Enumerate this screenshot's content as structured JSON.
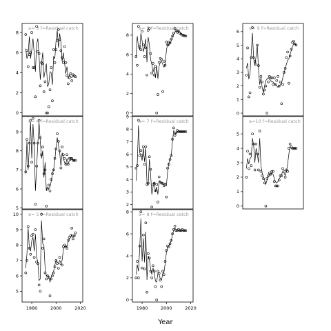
{
  "xlabel": "Year",
  "chart_data": [
    {
      "type": "scatter",
      "strip": "a= 3  f=Residual catch",
      "xlim": [
        1972,
        2022
      ],
      "ylim": [
        -0.3,
        8.9
      ],
      "xticks": [
        1980,
        2000,
        2020
      ],
      "yticks": [
        0,
        2,
        4,
        6,
        8
      ],
      "show_xticks": false,
      "x": [
        1975,
        1976,
        1977,
        1978,
        1979,
        1980,
        1981,
        1982,
        1983,
        1984,
        1985,
        1986,
        1987,
        1988,
        1989,
        1990,
        1991,
        1992,
        1993,
        1994,
        1995,
        1996,
        1997,
        1998,
        1999,
        2000,
        2001,
        2002,
        2003,
        2004,
        2005,
        2006,
        2007,
        2008,
        2009,
        2010,
        2011,
        2012,
        2013,
        2014,
        2015,
        2016
      ],
      "y": [
        7.8,
        6.2,
        4.6,
        5.8,
        6.0,
        8.0,
        4.5,
        4.5,
        1.6,
        8.6,
        6.1,
        5.9,
        2.7,
        5.0,
        4.9,
        2.1,
        3.1,
        0.0,
        0.0,
        0.6,
        2.3,
        4.5,
        1.2,
        6.3,
        5.0,
        6.3,
        7.2,
        8.3,
        7.3,
        6.2,
        5.5,
        5.0,
        6.6,
        5.0,
        3.7,
        2.9,
        3.5,
        3.9,
        3.2,
        3.8,
        3.7,
        3.6
      ],
      "fit": [
        6.4,
        5.4,
        5.8,
        7.6,
        5.4,
        6.3,
        7.4,
        5.9,
        4.1,
        6.8,
        7.4,
        5.7,
        3.3,
        4.8,
        6.0,
        3.5,
        4.2,
        4.9,
        2.6,
        2.9,
        4.1,
        4.0,
        2.8,
        5.6,
        5.4,
        7.2,
        8.2,
        6.5,
        7.9,
        7.0,
        5.1,
        6.0,
        5.0,
        3.9,
        4.6,
        3.4,
        3.8,
        3.6,
        3.5,
        3.7,
        3.6,
        3.6
      ]
    },
    {
      "type": "scatter",
      "strip": "a= 6  f=Residual catch",
      "xlim": [
        1972,
        2022
      ],
      "ylim": [
        -0.3,
        9.2
      ],
      "xticks": [
        1980,
        2000,
        2020
      ],
      "yticks": [
        0,
        2,
        4,
        6,
        8
      ],
      "show_xticks": false,
      "x": [
        1975,
        1976,
        1977,
        1978,
        1979,
        1980,
        1981,
        1982,
        1983,
        1984,
        1985,
        1986,
        1987,
        1988,
        1989,
        1990,
        1991,
        1992,
        1993,
        1994,
        1995,
        1996,
        1997,
        1998,
        1999,
        2000,
        2001,
        2002,
        2003,
        2004,
        2005,
        2006,
        2007,
        2008,
        2009,
        2010,
        2011,
        2012,
        2013,
        2014,
        2015,
        2016
      ],
      "y": [
        5.8,
        4.9,
        8.9,
        6.8,
        6.5,
        8.4,
        7.0,
        5.8,
        6.7,
        3.9,
        8.5,
        8.7,
        6.1,
        4.1,
        5.1,
        3.9,
        4.8,
        0.0,
        1.9,
        5.2,
        5.6,
        5.5,
        2.2,
        5.3,
        4.9,
        7.3,
        7.0,
        7.3,
        7.2,
        7.6,
        7.9,
        8.2,
        8.7,
        8.5,
        8.3,
        8.4,
        8.2,
        8.1,
        8.0,
        8.0,
        7.9,
        7.9
      ],
      "fit": [
        5.8,
        7.9,
        6.8,
        6.5,
        8.2,
        7.4,
        6.3,
        6.8,
        7.6,
        5.2,
        7.8,
        7.0,
        5.5,
        5.0,
        4.2,
        4.7,
        3.6,
        4.8,
        3.5,
        4.8,
        5.2,
        5.3,
        5.0,
        4.7,
        5.0,
        6.4,
        7.1,
        6.9,
        7.2,
        7.4,
        7.8,
        8.1,
        8.3,
        8.4,
        8.5,
        8.4,
        8.3,
        8.2,
        8.1,
        8.0,
        8.0,
        7.9
      ]
    },
    {
      "type": "scatter",
      "strip": "a= 9  f=Residual catch",
      "xlim": [
        1972,
        2022
      ],
      "ylim": [
        -0.2,
        6.6
      ],
      "xticks": [
        1980,
        2000,
        2020
      ],
      "yticks": [
        0,
        1,
        2,
        3,
        4,
        5,
        6
      ],
      "show_xticks": false,
      "x": [
        1975,
        1976,
        1977,
        1978,
        1979,
        1980,
        1981,
        1982,
        1983,
        1984,
        1985,
        1986,
        1987,
        1988,
        1989,
        1990,
        1991,
        1992,
        1993,
        1994,
        1995,
        1996,
        1997,
        1998,
        1999,
        2000,
        2001,
        2002,
        2003,
        2004,
        2005,
        2006,
        2007,
        2008,
        2009,
        2010,
        2011,
        2012,
        2013,
        2014,
        2015,
        2016
      ],
      "y": [
        2.8,
        4.8,
        1.2,
        1.5,
        4.1,
        6.3,
        4.1,
        3.8,
        3.6,
        5.0,
        3.5,
        1.9,
        2.7,
        2.3,
        1.4,
        1.7,
        2.0,
        0.0,
        2.3,
        2.7,
        2.6,
        2.6,
        2.1,
        2.6,
        2.1,
        2.4,
        2.7,
        2.0,
        2.3,
        0.7,
        2.1,
        3.0,
        3.3,
        4.1,
        4.5,
        2.2,
        4.2,
        4.7,
        5.2,
        5.3,
        5.1,
        5.0
      ],
      "fit": [
        3.3,
        3.7,
        2.5,
        2.9,
        4.4,
        5.9,
        4.0,
        3.5,
        4.2,
        5.0,
        3.2,
        2.1,
        2.6,
        1.9,
        1.5,
        2.0,
        2.4,
        2.5,
        2.6,
        2.5,
        2.4,
        2.3,
        2.3,
        2.2,
        2.1,
        2.0,
        1.9,
        2.0,
        2.1,
        2.2,
        2.6,
        2.9,
        3.3,
        3.6,
        3.9,
        4.0,
        4.3,
        4.6,
        4.9,
        5.1,
        5.1,
        5.0
      ]
    },
    {
      "type": "scatter",
      "strip": "a= 4  f=Residual catch",
      "xlim": [
        1972,
        2022
      ],
      "ylim": [
        4.95,
        9.8
      ],
      "xticks": [
        1980,
        2000,
        2020
      ],
      "yticks": [
        5,
        6,
        7,
        8,
        9
      ],
      "show_xticks": false,
      "x": [
        1975,
        1976,
        1977,
        1978,
        1979,
        1980,
        1981,
        1982,
        1983,
        1984,
        1985,
        1986,
        1987,
        1988,
        1989,
        1990,
        1991,
        1992,
        1993,
        1994,
        1995,
        1996,
        1997,
        1998,
        1999,
        2000,
        2001,
        2002,
        2003,
        2004,
        2005,
        2006,
        2007,
        2008,
        2009,
        2010,
        2011,
        2012,
        2013,
        2014,
        2015,
        2016
      ],
      "y": [
        6.9,
        8.6,
        7.2,
        8.4,
        9.6,
        7.4,
        9.7,
        8.4,
        5.2,
        7.2,
        8.4,
        9.6,
        8.7,
        7.8,
        8.2,
        6.8,
        7.0,
        5.1,
        6.0,
        6.2,
        5.9,
        6.5,
        6.8,
        7.0,
        7.6,
        8.1,
        8.9,
        8.5,
        8.0,
        7.1,
        8.2,
        7.8,
        7.6,
        7.3,
        7.8,
        7.3,
        7.6,
        7.6,
        7.6,
        7.5,
        7.5,
        7.5
      ],
      "fit": [
        6.8,
        8.5,
        7.0,
        8.2,
        9.5,
        7.6,
        9.4,
        8.3,
        5.9,
        7.1,
        8.4,
        9.5,
        8.5,
        7.6,
        8.0,
        6.6,
        7.4,
        5.9,
        6.1,
        6.0,
        6.1,
        6.4,
        6.8,
        7.0,
        7.5,
        8.2,
        8.7,
        8.3,
        7.9,
        7.2,
        7.9,
        7.6,
        7.4,
        7.3,
        7.6,
        7.3,
        7.5,
        7.5,
        7.6,
        7.5,
        7.5,
        7.5
      ]
    },
    {
      "type": "scatter",
      "strip": "a= 7  f=Residual catch",
      "xlim": [
        1972,
        2022
      ],
      "ylim": [
        1.65,
        9.0
      ],
      "xticks": [
        1980,
        2000,
        2020
      ],
      "yticks": [
        2,
        3,
        4,
        5,
        6,
        7,
        8,
        9
      ],
      "show_xticks": false,
      "x": [
        1975,
        1976,
        1977,
        1978,
        1979,
        1980,
        1981,
        1982,
        1983,
        1984,
        1985,
        1986,
        1987,
        1988,
        1989,
        1990,
        1991,
        1992,
        1993,
        1994,
        1995,
        1996,
        1997,
        1998,
        1999,
        2000,
        2001,
        2002,
        2003,
        2004,
        2005,
        2006,
        2007,
        2008,
        2009,
        2010,
        2011,
        2012,
        2013,
        2014,
        2015,
        2016
      ],
      "y": [
        4.9,
        5.1,
        8.7,
        5.9,
        6.3,
        5.9,
        6.6,
        5.2,
        6.6,
        3.6,
        3.7,
        5.8,
        4.8,
        1.8,
        3.6,
        3.7,
        3.1,
        3.6,
        2.2,
        4.2,
        3.8,
        3.7,
        3.7,
        3.5,
        3.6,
        2.6,
        4.9,
        5.2,
        5.6,
        5.9,
        7.2,
        8.1,
        7.5,
        7.7,
        7.9,
        7.8,
        7.8,
        7.8,
        7.8,
        7.8,
        7.8,
        7.8
      ],
      "fit": [
        3.9,
        5.2,
        8.3,
        6.1,
        6.0,
        5.5,
        6.5,
        5.4,
        6.5,
        3.7,
        3.5,
        5.6,
        4.4,
        2.8,
        3.4,
        3.8,
        3.0,
        3.4,
        2.8,
        3.9,
        3.8,
        3.7,
        3.6,
        3.6,
        3.7,
        3.5,
        4.6,
        5.3,
        5.6,
        5.9,
        7.0,
        7.9,
        7.6,
        7.7,
        7.8,
        7.8,
        7.8,
        7.8,
        7.8,
        7.8,
        7.8,
        7.8
      ]
    },
    {
      "type": "scatter",
      "strip": "a=10  f=Residual catch",
      "xlim": [
        1972,
        2022
      ],
      "ylim": [
        -0.2,
        6.2
      ],
      "xticks": [
        1980,
        2000,
        2020
      ],
      "yticks": [
        0,
        1,
        2,
        3,
        4,
        5
      ],
      "show_xticks": false,
      "x": [
        1975,
        1976,
        1977,
        1978,
        1979,
        1980,
        1981,
        1982,
        1983,
        1984,
        1985,
        1986,
        1987,
        1988,
        1989,
        1990,
        1991,
        1992,
        1993,
        1994,
        1995,
        1996,
        1997,
        1998,
        1999,
        2000,
        2001,
        2002,
        2003,
        2004,
        2005,
        2006,
        2007,
        2008,
        2009,
        2010,
        2011,
        2012,
        2013,
        2014,
        2015,
        2016
      ],
      "y": [
        2.0,
        3.8,
        2.6,
        3.6,
        2.8,
        5.0,
        4.3,
        2.5,
        4.3,
        3.6,
        2.5,
        5.2,
        2.4,
        2.1,
        1.9,
        1.6,
        0.0,
        1.9,
        2.1,
        2.3,
        2.2,
        2.4,
        2.4,
        1.7,
        1.4,
        1.4,
        1.4,
        1.8,
        2.1,
        2.1,
        2.6,
        2.4,
        2.0,
        2.5,
        2.4,
        4.0,
        4.3,
        4.1,
        4.0,
        4.0,
        4.0,
        4.0
      ],
      "fit": [
        2.6,
        3.3,
        2.9,
        3.3,
        3.4,
        4.7,
        4.2,
        3.0,
        4.0,
        3.6,
        3.0,
        4.7,
        2.8,
        2.3,
        2.0,
        1.8,
        1.5,
        1.8,
        2.0,
        2.2,
        2.2,
        2.3,
        2.2,
        1.9,
        1.7,
        1.6,
        1.7,
        1.9,
        2.0,
        2.2,
        2.4,
        2.3,
        2.1,
        2.4,
        2.9,
        3.6,
        4.1,
        4.0,
        4.0,
        4.0,
        4.0,
        4.0
      ]
    },
    {
      "type": "scatter",
      "strip": "a= 5  f=Residual catch",
      "xlim": [
        1972,
        2022
      ],
      "ylim": [
        4.3,
        10.3
      ],
      "xticks": [
        1980,
        2000,
        2020
      ],
      "yticks": [
        5,
        6,
        7,
        8,
        9,
        10
      ],
      "show_xticks": true,
      "x": [
        1975,
        1976,
        1977,
        1978,
        1979,
        1980,
        1981,
        1982,
        1983,
        1984,
        1985,
        1986,
        1987,
        1988,
        1989,
        1990,
        1991,
        1992,
        1993,
        1994,
        1995,
        1996,
        1997,
        1998,
        1999,
        2000,
        2001,
        2002,
        2003,
        2004,
        2005,
        2006,
        2007,
        2008,
        2009,
        2010,
        2011,
        2012,
        2013,
        2014,
        2015,
        2016
      ],
      "y": [
        6.2,
        7.0,
        9.2,
        7.8,
        7.4,
        8.6,
        8.7,
        7.2,
        9.0,
        6.9,
        6.8,
        5.4,
        5.0,
        10.0,
        7.8,
        8.4,
        6.2,
        5.8,
        6.0,
        5.9,
        4.7,
        5.8,
        6.0,
        6.2,
        6.6,
        7.0,
        6.8,
        6.5,
        7.2,
        6.8,
        6.7,
        7.9,
        8.0,
        7.9,
        7.8,
        8.3,
        8.5,
        8.6,
        9.1,
        8.4,
        8.6,
        8.8
      ],
      "fit": [
        6.5,
        7.4,
        9.1,
        7.8,
        7.6,
        8.3,
        8.5,
        7.6,
        8.7,
        7.2,
        6.9,
        5.7,
        5.8,
        9.6,
        8.1,
        8.0,
        6.5,
        6.0,
        6.0,
        5.9,
        5.6,
        5.9,
        6.1,
        6.3,
        6.7,
        7.0,
        6.9,
        6.8,
        7.0,
        6.9,
        7.0,
        7.7,
        7.9,
        7.9,
        7.9,
        8.2,
        8.4,
        8.5,
        8.7,
        8.5,
        8.6,
        8.7
      ]
    },
    {
      "type": "scatter",
      "strip": "a= 8  f=Residual catch",
      "xlim": [
        1972,
        2022
      ],
      "ylim": [
        -0.2,
        8.2
      ],
      "xticks": [
        1980,
        2000,
        2020
      ],
      "yticks": [
        0,
        2,
        4,
        6,
        8
      ],
      "show_xticks": true,
      "x": [
        1975,
        1976,
        1977,
        1978,
        1979,
        1980,
        1981,
        1982,
        1983,
        1984,
        1985,
        1986,
        1987,
        1988,
        1989,
        1990,
        1991,
        1992,
        1993,
        1994,
        1995,
        1996,
        1997,
        1998,
        1999,
        2000,
        2001,
        2002,
        2003,
        2004,
        2005,
        2006,
        2007,
        2008,
        2009,
        2010,
        2011,
        2012,
        2013,
        2014,
        2015,
        2016
      ],
      "y": [
        2.0,
        3.5,
        2.0,
        4.9,
        8.0,
        2.9,
        5.9,
        2.8,
        7.0,
        0.7,
        4.2,
        3.8,
        2.6,
        2.0,
        3.1,
        2.6,
        1.2,
        0.0,
        2.6,
        2.4,
        1.8,
        1.2,
        2.6,
        2.3,
        3.5,
        4.5,
        4.9,
        4.8,
        5.1,
        5.4,
        6.0,
        6.4,
        6.7,
        6.3,
        6.3,
        6.4,
        6.3,
        6.3,
        6.4,
        6.3,
        6.3,
        6.3
      ],
      "fit": [
        2.3,
        3.2,
        2.6,
        4.6,
        7.4,
        3.5,
        5.6,
        3.4,
        6.2,
        1.8,
        4.0,
        3.7,
        2.8,
        2.3,
        2.9,
        2.5,
        1.7,
        1.6,
        2.4,
        2.3,
        1.9,
        1.8,
        2.4,
        2.5,
        3.3,
        4.3,
        4.8,
        4.9,
        5.1,
        5.4,
        5.9,
        6.3,
        6.5,
        6.4,
        6.3,
        6.3,
        6.3,
        6.3,
        6.3,
        6.3,
        6.3,
        6.3
      ]
    }
  ]
}
